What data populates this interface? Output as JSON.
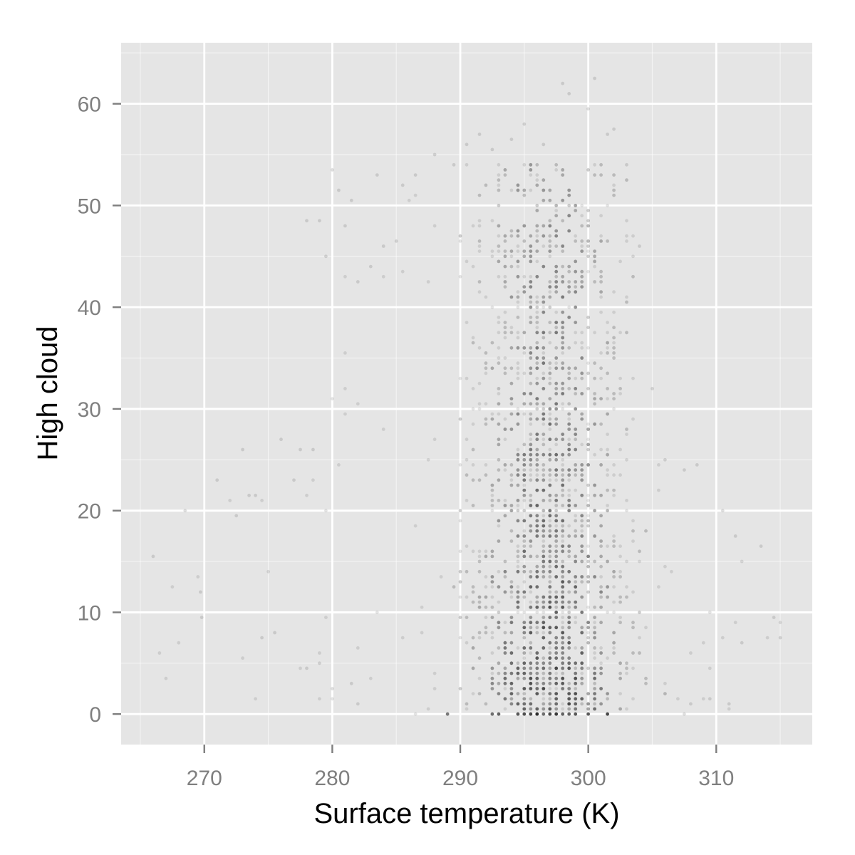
{
  "chart_data": {
    "type": "scatter",
    "title": "",
    "xlabel": "Surface temperature (K)",
    "ylabel": "High cloud",
    "xlim": [
      263.5,
      317.5
    ],
    "ylim": [
      -3,
      66
    ],
    "x_ticks": [
      270,
      280,
      290,
      300,
      310
    ],
    "y_ticks": [
      0,
      10,
      20,
      30,
      40,
      50,
      60
    ],
    "x_tick_labels": [
      "270",
      "280",
      "290",
      "300",
      "310"
    ],
    "y_tick_labels": [
      "0",
      "10",
      "20",
      "30",
      "40",
      "50",
      "60"
    ],
    "grid": true,
    "legend": "none",
    "point_color": "#000000",
    "point_alpha": 0.1,
    "panel_color": "#e5e5e5",
    "grid_color": "#ffffff",
    "series": [
      {
        "points": [
          [
            266.0,
            15.5
          ],
          [
            268.5,
            20.0
          ],
          [
            269.7,
            12.0
          ],
          [
            269.8,
            9.5
          ],
          [
            271.0,
            23.0
          ],
          [
            272.5,
            19.5
          ],
          [
            273.0,
            26.0
          ],
          [
            273.5,
            21.5
          ],
          [
            274.0,
            21.5
          ],
          [
            274.5,
            7.5
          ],
          [
            275.5,
            8.0
          ],
          [
            276.0,
            27.0
          ],
          [
            277.0,
            23.0
          ],
          [
            277.5,
            26.0
          ],
          [
            278.5,
            26.0
          ],
          [
            278.0,
            48.5
          ],
          [
            279.0,
            48.5
          ],
          [
            279.5,
            45.0
          ],
          [
            280.0,
            53.5
          ],
          [
            280.5,
            51.5
          ],
          [
            281.0,
            48.0
          ],
          [
            281.5,
            50.5
          ],
          [
            282.0,
            42.5
          ],
          [
            283.0,
            44.0
          ],
          [
            283.5,
            53.0
          ],
          [
            284.0,
            46.0
          ],
          [
            285.0,
            46.5
          ],
          [
            285.5,
            52.0
          ],
          [
            286.5,
            53.0
          ],
          [
            288.0,
            55.0
          ],
          [
            289.5,
            54.0
          ],
          [
            290.5,
            56.0
          ],
          [
            291.5,
            57.0
          ],
          [
            292.5,
            55.5
          ],
          [
            294.0,
            56.5
          ],
          [
            295.0,
            58.0
          ],
          [
            296.5,
            56.0
          ],
          [
            298.0,
            62.0
          ],
          [
            298.5,
            61.0
          ],
          [
            300.5,
            62.5
          ],
          [
            300.0,
            59.5
          ],
          [
            301.5,
            57.0
          ],
          [
            302.0,
            57.5
          ],
          [
            303.0,
            54.0
          ],
          [
            304.0,
            46.0
          ],
          [
            305.0,
            32.0
          ],
          [
            306.0,
            25.0
          ],
          [
            307.5,
            24.0
          ],
          [
            308.5,
            24.5
          ],
          [
            310.5,
            20.0
          ],
          [
            311.5,
            17.5
          ],
          [
            313.5,
            16.5
          ],
          [
            314.5,
            9.5
          ],
          [
            315.0,
            7.5
          ],
          [
            312.0,
            7.0
          ],
          [
            311.0,
            1.0
          ],
          [
            309.5,
            1.5
          ],
          [
            308.0,
            1.0
          ],
          [
            307.5,
            0.0
          ],
          [
            306.0,
            2.0
          ],
          [
            282.0,
            1.0
          ],
          [
            281.5,
            3.0
          ],
          [
            280.0,
            2.5
          ],
          [
            279.0,
            5.0
          ],
          [
            278.0,
            4.5
          ]
        ]
      }
    ]
  }
}
